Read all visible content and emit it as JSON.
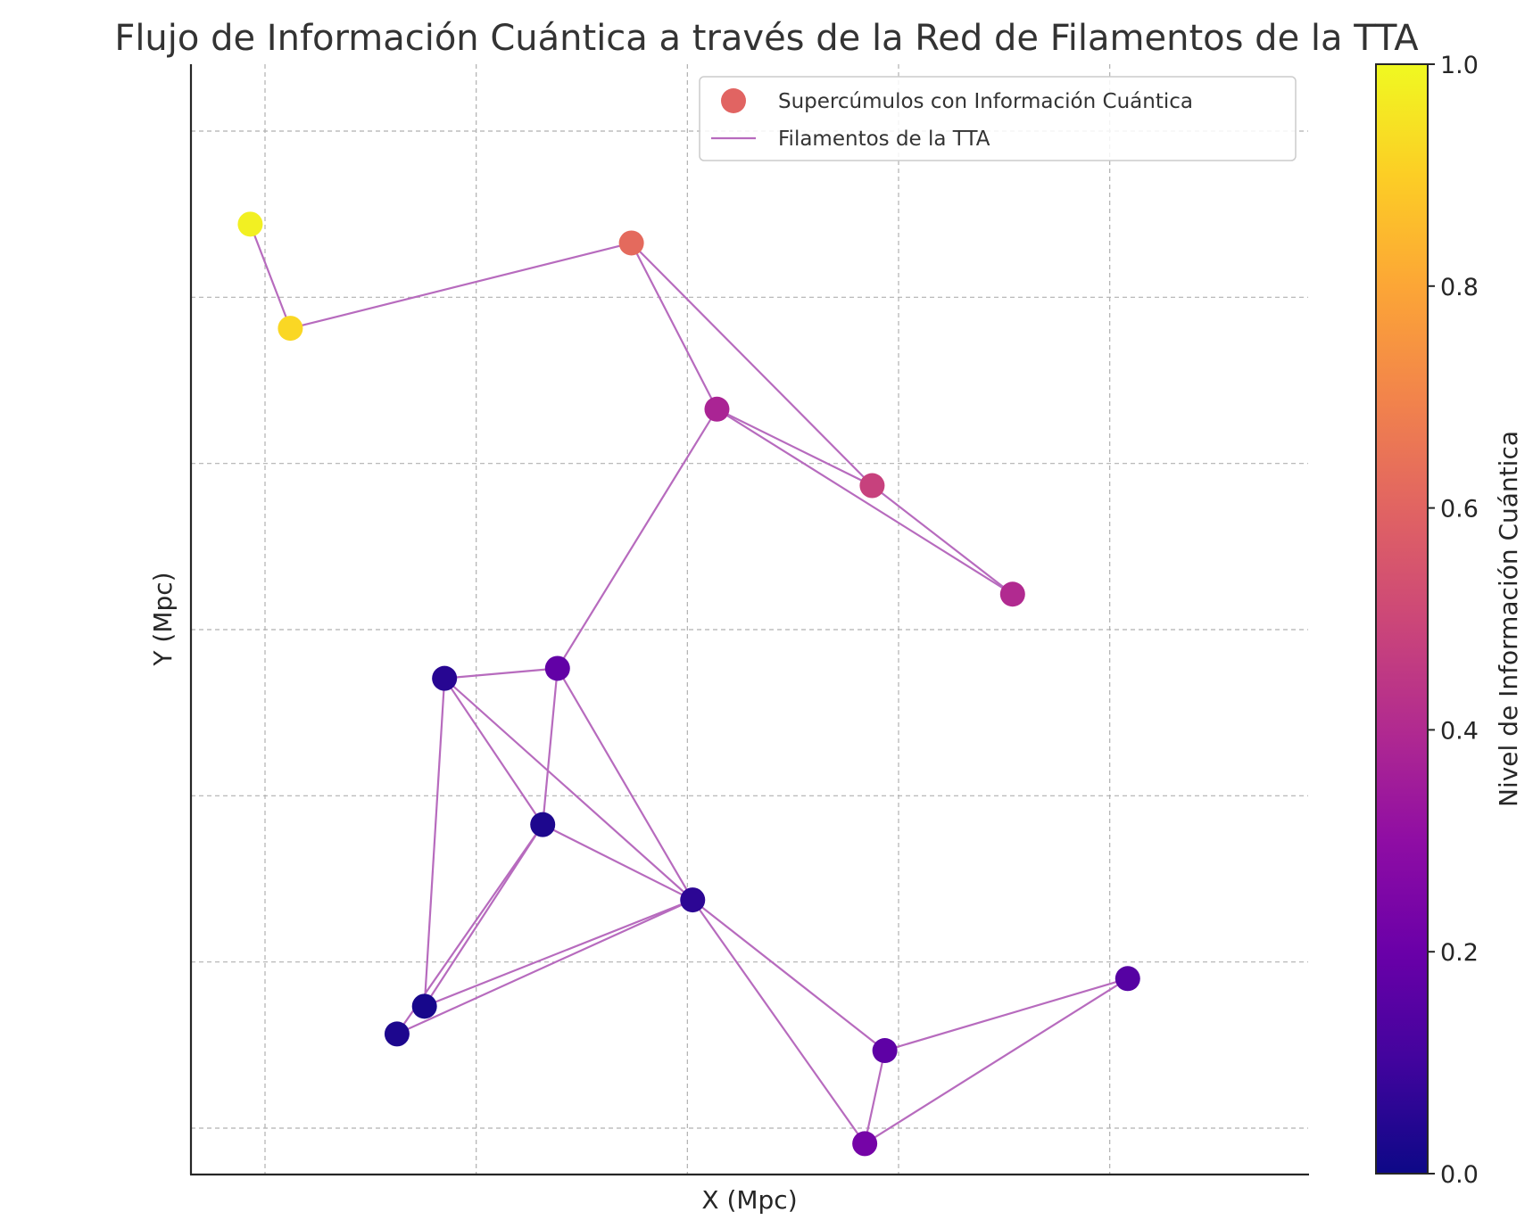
{
  "chart_data": {
    "type": "scatter",
    "title": "Flujo de Información Cuántica a través de la Red de Filamentos de la TTA",
    "xlabel": "X (Mpc)",
    "ylabel": "Y (Mpc)",
    "xlim": [
      0,
      100
    ],
    "ylim": [
      0,
      100
    ],
    "grid": true,
    "legend": {
      "placement": "top-right",
      "entries": [
        {
          "label": "Supercúmulos con Información Cuántica",
          "marker": "circle",
          "color": "#e16462"
        },
        {
          "label": "Filamentos de la TTA",
          "marker": "line",
          "color": "#b76bbe"
        }
      ]
    },
    "colorbar": {
      "label": "Nivel de Información Cuántica",
      "colormap": "plasma",
      "ticks": [
        "0.0",
        "0.2",
        "0.4",
        "0.6",
        "0.8",
        "1.0"
      ],
      "range": [
        0,
        1
      ]
    },
    "points": [
      {
        "x": 8.6,
        "y": 91.6,
        "value": 0.98
      },
      {
        "x": 12.4,
        "y": 82.2,
        "value": 0.92
      },
      {
        "x": 44.7,
        "y": 89.9,
        "value": 0.62
      },
      {
        "x": 52.8,
        "y": 74.9,
        "value": 0.38
      },
      {
        "x": 67.5,
        "y": 68.0,
        "value": 0.48
      },
      {
        "x": 80.8,
        "y": 58.2,
        "value": 0.4
      },
      {
        "x": 37.7,
        "y": 51.5,
        "value": 0.18
      },
      {
        "x": 27.0,
        "y": 50.6,
        "value": 0.05
      },
      {
        "x": 36.3,
        "y": 37.4,
        "value": 0.03
      },
      {
        "x": 50.5,
        "y": 30.6,
        "value": 0.06
      },
      {
        "x": 25.1,
        "y": 21.0,
        "value": 0.02
      },
      {
        "x": 22.5,
        "y": 18.5,
        "value": 0.03
      },
      {
        "x": 91.7,
        "y": 23.5,
        "value": 0.15
      },
      {
        "x": 68.7,
        "y": 17.0,
        "value": 0.17
      },
      {
        "x": 66.8,
        "y": 8.6,
        "value": 0.23
      }
    ],
    "filaments": [
      [
        0,
        1
      ],
      [
        1,
        2
      ],
      [
        2,
        3
      ],
      [
        2,
        4
      ],
      [
        3,
        4
      ],
      [
        3,
        5
      ],
      [
        4,
        5
      ],
      [
        3,
        6
      ],
      [
        6,
        7
      ],
      [
        6,
        9
      ],
      [
        6,
        8
      ],
      [
        7,
        8
      ],
      [
        7,
        9
      ],
      [
        7,
        10
      ],
      [
        8,
        9
      ],
      [
        8,
        10
      ],
      [
        8,
        11
      ],
      [
        9,
        10
      ],
      [
        9,
        11
      ],
      [
        9,
        13
      ],
      [
        9,
        14
      ],
      [
        13,
        14
      ],
      [
        13,
        12
      ],
      [
        14,
        12
      ]
    ]
  }
}
